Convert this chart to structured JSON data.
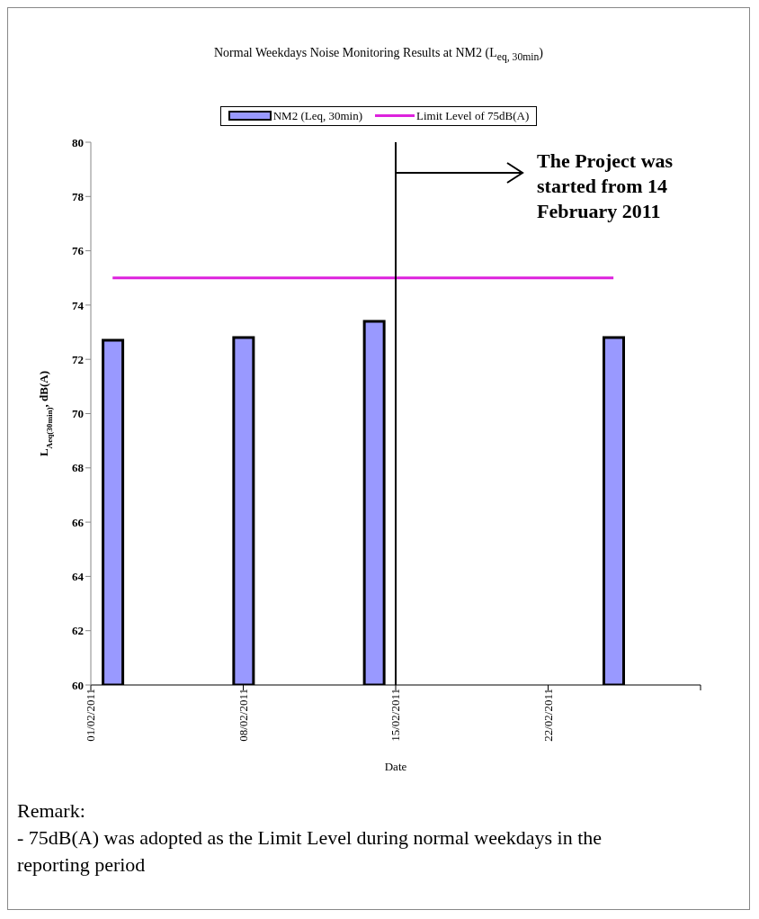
{
  "chart_data": {
    "type": "bar",
    "title": "Normal Weekdays Noise Monitoring Results at NM2 (L$_{eq, 30min}$)",
    "xlabel": "Date",
    "ylabel": "L$_{Aeq(30min)}$, dB(A)",
    "x": [
      "2011-02-02",
      "2011-02-08",
      "2011-02-14",
      "2011-02-25"
    ],
    "series": [
      {
        "name": "NM2 (Leq, 30min)",
        "color": "#9999ff",
        "values": [
          72.7,
          72.8,
          73.4,
          72.8
        ]
      },
      {
        "name": "Limit Level of 75dB(A)",
        "type": "line",
        "color": "#dd22dd",
        "values": [
          75,
          75,
          75,
          75
        ]
      }
    ],
    "xlim": [
      "2011-02-01",
      "2011-03-01"
    ],
    "xticks": [
      {
        "value": "2011-02-01",
        "label": "01/02/2011"
      },
      {
        "value": "2011-02-08",
        "label": "08/02/2011"
      },
      {
        "value": "2011-02-15",
        "label": "15/02/2011"
      },
      {
        "value": "2011-02-22",
        "label": "22/02/2011"
      },
      {
        "value": "2011-03-01",
        "label": null
      }
    ],
    "ylim": [
      60,
      80
    ],
    "yticks": [
      60,
      62,
      64,
      66,
      68,
      70,
      72,
      74,
      76,
      78,
      80
    ],
    "ref_lines": [
      {
        "axis": "x",
        "value": "2011-02-15",
        "label": "The Project was started from 14 February 2011",
        "color": "#000000"
      }
    ],
    "grid": false,
    "legend": "top",
    "marker": "none",
    "annotations": [
      "Remark:",
      "- 75dB(A) was adopted as the Limit Level during normal weekdays in the reporting period"
    ]
  }
}
